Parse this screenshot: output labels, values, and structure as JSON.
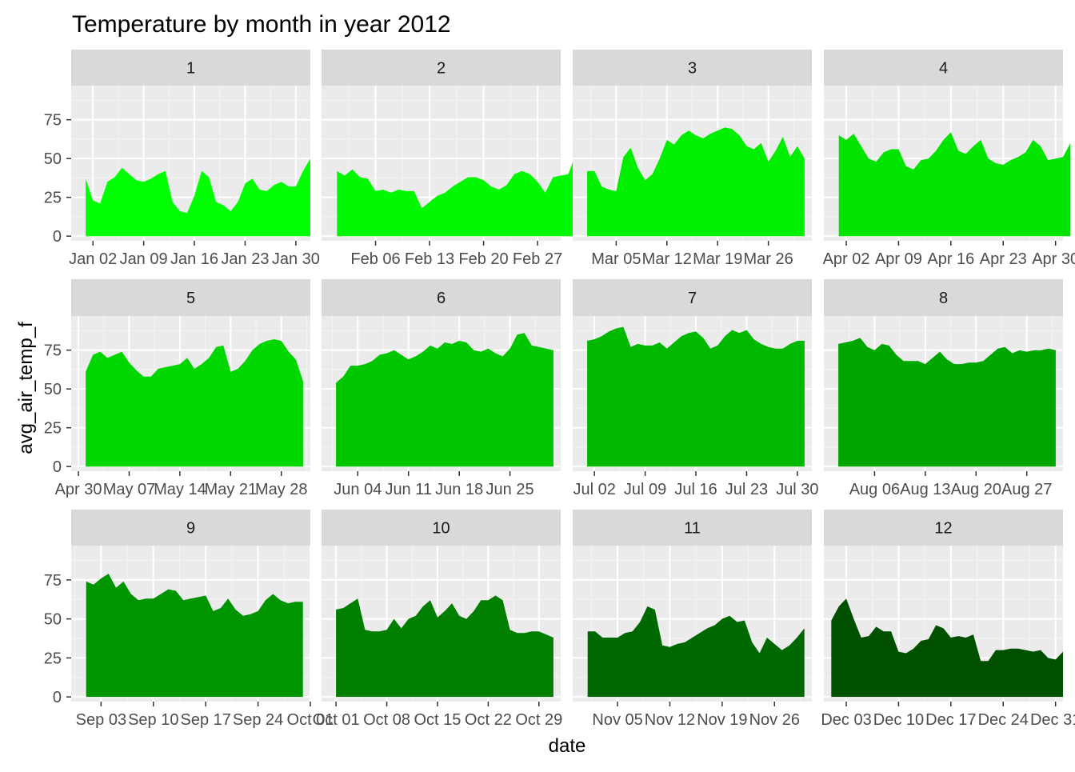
{
  "chart_data": {
    "type": "area",
    "title": "Temperature by month in year 2012",
    "xlabel": "date",
    "ylabel": "avg_air_temp_f",
    "ylim": [
      -3,
      97
    ],
    "yticks": [
      0,
      25,
      50,
      75
    ],
    "grid": true,
    "facet_strip_labels": [
      "1",
      "2",
      "3",
      "4",
      "5",
      "6",
      "7",
      "8",
      "9",
      "10",
      "11",
      "12"
    ],
    "facets": [
      {
        "strip": "1",
        "color": "#00ff00",
        "start": "2012-01-01",
        "xlim": [
          "2011-12-30",
          "2012-02-01"
        ],
        "ticks": [
          {
            "date": "2012-01-02",
            "label": "Jan 02"
          },
          {
            "date": "2012-01-09",
            "label": "Jan 09"
          },
          {
            "date": "2012-01-16",
            "label": "Jan 16"
          },
          {
            "date": "2012-01-23",
            "label": "Jan 23"
          },
          {
            "date": "2012-01-30",
            "label": "Jan 30"
          }
        ],
        "values": [
          37,
          23,
          21,
          35,
          38,
          44,
          40,
          36,
          35,
          37,
          40,
          42,
          22,
          16,
          15,
          26,
          42,
          38,
          22,
          20,
          16,
          22,
          34,
          37,
          30,
          29,
          33,
          35,
          32,
          32,
          42,
          50
        ]
      },
      {
        "strip": "2",
        "color": "#00f800",
        "start": "2012-02-01",
        "xlim": [
          "2012-01-30",
          "2012-03-01"
        ],
        "ticks": [
          {
            "date": "2012-02-06",
            "label": "Feb 06"
          },
          {
            "date": "2012-02-13",
            "label": "Feb 13"
          },
          {
            "date": "2012-02-20",
            "label": "Feb 20"
          },
          {
            "date": "2012-02-27",
            "label": "Feb 27"
          }
        ],
        "values": [
          42,
          39,
          43,
          38,
          37,
          29,
          30,
          28,
          30,
          29,
          29,
          18,
          22,
          26,
          28,
          32,
          35,
          38,
          38,
          36,
          32,
          30,
          33,
          40,
          42,
          40,
          35,
          28,
          38,
          39,
          40,
          54
        ]
      },
      {
        "strip": "3",
        "color": "#00ee00",
        "start": "2012-03-01",
        "xlim": [
          "2012-02-28",
          "2012-04-01"
        ],
        "ticks": [
          {
            "date": "2012-03-05",
            "label": "Mar 05"
          },
          {
            "date": "2012-03-12",
            "label": "Mar 12"
          },
          {
            "date": "2012-03-19",
            "label": "Mar 19"
          },
          {
            "date": "2012-03-26",
            "label": "Mar 26"
          }
        ],
        "values": [
          42,
          42,
          32,
          30,
          29,
          51,
          57,
          44,
          36,
          40,
          50,
          62,
          59,
          65,
          68,
          65,
          63,
          66,
          68,
          70,
          69,
          65,
          58,
          56,
          60,
          48,
          55,
          64,
          51,
          58,
          50
        ]
      },
      {
        "strip": "4",
        "color": "#00e400",
        "start": "2012-04-01",
        "xlim": [
          "2012-03-30",
          "2012-05-01"
        ],
        "ticks": [
          {
            "date": "2012-04-02",
            "label": "Apr 02"
          },
          {
            "date": "2012-04-09",
            "label": "Apr 09"
          },
          {
            "date": "2012-04-16",
            "label": "Apr 16"
          },
          {
            "date": "2012-04-23",
            "label": "Apr 23"
          },
          {
            "date": "2012-04-30",
            "label": "Apr 30"
          }
        ],
        "values": [
          65,
          62,
          66,
          58,
          50,
          48,
          54,
          56,
          56,
          45,
          43,
          49,
          50,
          55,
          62,
          67,
          55,
          53,
          58,
          62,
          50,
          47,
          46,
          49,
          51,
          54,
          62,
          58,
          49,
          50,
          51,
          60
        ]
      },
      {
        "strip": "5",
        "color": "#00d600",
        "start": "2012-05-01",
        "xlim": [
          "2012-04-29",
          "2012-06-01"
        ],
        "ticks": [
          {
            "date": "2012-04-30",
            "label": "Apr 30"
          },
          {
            "date": "2012-05-07",
            "label": "May 07"
          },
          {
            "date": "2012-05-14",
            "label": "May 14"
          },
          {
            "date": "2012-05-21",
            "label": "May 21"
          },
          {
            "date": "2012-05-28",
            "label": "May 28"
          }
        ],
        "values": [
          61,
          72,
          74,
          70,
          72,
          74,
          67,
          62,
          58,
          58,
          63,
          64,
          65,
          66,
          70,
          63,
          66,
          70,
          77,
          78,
          61,
          63,
          68,
          75,
          79,
          81,
          82,
          81,
          74,
          69,
          55
        ]
      },
      {
        "strip": "6",
        "color": "#00c600",
        "start": "2012-06-01",
        "xlim": [
          "2012-05-30",
          "2012-07-02"
        ],
        "ticks": [
          {
            "date": "2012-06-04",
            "label": "Jun 04"
          },
          {
            "date": "2012-06-11",
            "label": "Jun 11"
          },
          {
            "date": "2012-06-18",
            "label": "Jun 18"
          },
          {
            "date": "2012-06-25",
            "label": "Jun 25"
          }
        ],
        "values": [
          54,
          58,
          65,
          65,
          66,
          68,
          72,
          73,
          75,
          72,
          69,
          71,
          74,
          78,
          76,
          80,
          79,
          81,
          80,
          75,
          74,
          76,
          73,
          71,
          76,
          85,
          86,
          78,
          77,
          76,
          75
        ]
      },
      {
        "strip": "7",
        "color": "#00b800",
        "start": "2012-07-01",
        "xlim": [
          "2012-06-29",
          "2012-08-01"
        ],
        "ticks": [
          {
            "date": "2012-07-02",
            "label": "Jul 02"
          },
          {
            "date": "2012-07-09",
            "label": "Jul 09"
          },
          {
            "date": "2012-07-16",
            "label": "Jul 16"
          },
          {
            "date": "2012-07-23",
            "label": "Jul 23"
          },
          {
            "date": "2012-07-30",
            "label": "Jul 30"
          }
        ],
        "values": [
          81,
          82,
          84,
          87,
          89,
          90,
          77,
          79,
          78,
          78,
          80,
          76,
          80,
          84,
          86,
          87,
          83,
          76,
          78,
          84,
          88,
          86,
          88,
          82,
          79,
          77,
          76,
          76,
          79,
          81,
          81
        ]
      },
      {
        "strip": "8",
        "color": "#00a600",
        "start": "2012-08-01",
        "xlim": [
          "2012-07-30",
          "2012-09-01"
        ],
        "ticks": [
          {
            "date": "2012-08-06",
            "label": "Aug 06"
          },
          {
            "date": "2012-08-13",
            "label": "Aug 13"
          },
          {
            "date": "2012-08-20",
            "label": "Aug 20"
          },
          {
            "date": "2012-08-27",
            "label": "Aug 27"
          }
        ],
        "values": [
          79,
          80,
          81,
          83,
          77,
          75,
          79,
          78,
          72,
          68,
          68,
          68,
          66,
          70,
          74,
          69,
          66,
          66,
          67,
          67,
          68,
          72,
          76,
          77,
          73,
          75,
          74,
          75,
          75,
          76,
          75
        ]
      },
      {
        "strip": "9",
        "color": "#009400",
        "start": "2012-09-01",
        "xlim": [
          "2012-08-30",
          "2012-10-01"
        ],
        "ticks": [
          {
            "date": "2012-09-03",
            "label": "Sep 03"
          },
          {
            "date": "2012-09-10",
            "label": "Sep 10"
          },
          {
            "date": "2012-09-17",
            "label": "Sep 17"
          },
          {
            "date": "2012-09-24",
            "label": "Sep 24"
          },
          {
            "date": "2012-10-01",
            "label": "Oct 01"
          }
        ],
        "values": [
          74,
          72,
          76,
          79,
          70,
          74,
          66,
          62,
          63,
          63,
          66,
          69,
          68,
          62,
          63,
          64,
          65,
          55,
          57,
          63,
          56,
          52,
          53,
          55,
          62,
          66,
          62,
          60,
          61,
          61
        ]
      },
      {
        "strip": "10",
        "color": "#007e00",
        "start": "2012-10-01",
        "xlim": [
          "2012-09-29",
          "2012-11-01"
        ],
        "ticks": [
          {
            "date": "2012-10-01",
            "label": "Oct 01"
          },
          {
            "date": "2012-10-08",
            "label": "Oct 08"
          },
          {
            "date": "2012-10-15",
            "label": "Oct 15"
          },
          {
            "date": "2012-10-22",
            "label": "Oct 22"
          },
          {
            "date": "2012-10-29",
            "label": "Oct 29"
          }
        ],
        "values": [
          56,
          57,
          60,
          63,
          43,
          42,
          42,
          43,
          50,
          44,
          50,
          52,
          58,
          62,
          51,
          55,
          60,
          52,
          50,
          55,
          62,
          62,
          65,
          62,
          43,
          41,
          41,
          42,
          42,
          40,
          38
        ]
      },
      {
        "strip": "11",
        "color": "#006800",
        "start": "2012-11-01",
        "xlim": [
          "2012-10-30",
          "2012-12-01"
        ],
        "ticks": [
          {
            "date": "2012-11-05",
            "label": "Nov 05"
          },
          {
            "date": "2012-11-12",
            "label": "Nov 12"
          },
          {
            "date": "2012-11-19",
            "label": "Nov 19"
          },
          {
            "date": "2012-11-26",
            "label": "Nov 26"
          }
        ],
        "values": [
          42,
          42,
          38,
          38,
          38,
          41,
          42,
          48,
          58,
          56,
          33,
          32,
          34,
          35,
          38,
          41,
          44,
          46,
          50,
          52,
          48,
          49,
          35,
          28,
          38,
          34,
          30,
          33,
          38,
          44
        ]
      },
      {
        "strip": "12",
        "color": "#005000",
        "start": "2012-12-01",
        "xlim": [
          "2012-11-30",
          "2013-01-01"
        ],
        "ticks": [
          {
            "date": "2012-12-03",
            "label": "Dec 03"
          },
          {
            "date": "2012-12-10",
            "label": "Dec 10"
          },
          {
            "date": "2012-12-17",
            "label": "Dec 17"
          },
          {
            "date": "2012-12-24",
            "label": "Dec 24"
          },
          {
            "date": "2012-12-31",
            "label": "Dec 31"
          }
        ],
        "values": [
          49,
          58,
          63,
          50,
          38,
          39,
          45,
          42,
          42,
          29,
          28,
          31,
          36,
          37,
          46,
          44,
          38,
          39,
          38,
          40,
          23,
          23,
          30,
          30,
          31,
          31,
          30,
          29,
          30,
          25,
          24,
          29
        ]
      }
    ]
  }
}
